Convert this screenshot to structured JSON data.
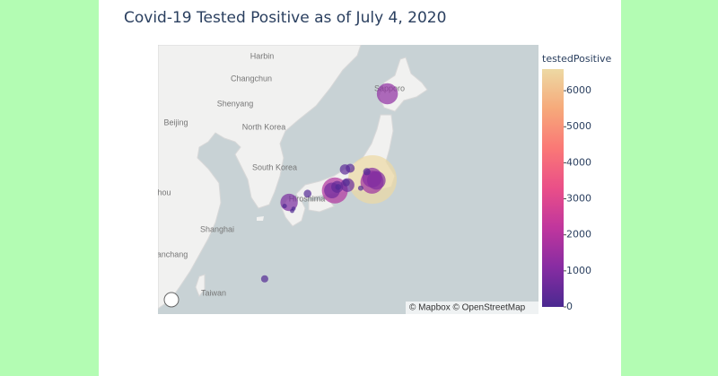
{
  "chart_data": {
    "type": "scatter_mapbox",
    "title": "Covid-19 Tested Positive as of July 4, 2020",
    "colorbar_title": "testedPositive",
    "lat": [
      35.69,
      35.45,
      34.69,
      43.06,
      35.86,
      35.61,
      33.59,
      34.69,
      35.18,
      35.02,
      36.59,
      36.7,
      26.21,
      34.4,
      33.25,
      33.0,
      36.39,
      35.0,
      34.9,
      35.4,
      32.79
    ],
    "lon": [
      139.69,
      139.64,
      135.5,
      141.35,
      139.65,
      140.12,
      130.4,
      135.18,
      136.91,
      135.76,
      136.63,
      137.21,
      127.68,
      132.46,
      129.9,
      130.9,
      139.06,
      135.87,
      138.38,
      136.76,
      130.74
    ],
    "values": [
      6600,
      1500,
      1900,
      1250,
      1100,
      970,
      850,
      700,
      530,
      400,
      300,
      227,
      148,
      170,
      60,
      50,
      150,
      100,
      80,
      150,
      50
    ],
    "clim": [
      0,
      6600
    ],
    "colorscale": [
      "#4b2991",
      "#872ca2",
      "#c0369d",
      "#ea4f88",
      "#fa7876",
      "#f6a97a",
      "#edd9a3"
    ],
    "opacity": 0.7,
    "size_max_px": 27,
    "cticks": [
      0,
      1000,
      2000,
      3000,
      4000,
      5000,
      6000
    ],
    "map_labels": [
      "Harbin",
      "Changchun",
      "Shenyang",
      "Beijing",
      "North Korea",
      "South Korea",
      "hou",
      "Shanghai",
      "anchang",
      "Taiwan",
      "Sapporo",
      "Hiroshima"
    ],
    "attribution": "© Mapbox © OpenStreetMap"
  }
}
